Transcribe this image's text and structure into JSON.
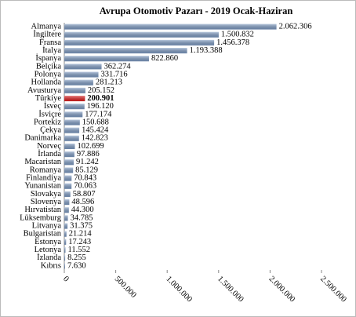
{
  "chart_data": {
    "type": "bar",
    "orientation": "horizontal",
    "title": "Avrupa Otomotiv Pazarı - 2019 Ocak-Haziran",
    "categories": [
      "Almanya",
      "İngiltere",
      "Fransa",
      "İtalya",
      "İspanya",
      "Belçika",
      "Polonya",
      "Hollanda",
      "Avusturya",
      "Türkiye",
      "İsveç",
      "İsviçre",
      "Portekiz",
      "Çekya",
      "Danimarka",
      "Norveç",
      "İrlanda",
      "Macaristan",
      "Romanya",
      "Finlandiya",
      "Yunanistan",
      "Slovakya",
      "Slovenya",
      "Hırvatistan",
      "Lüksemburg",
      "Litvanya",
      "Bulgaristan",
      "Estonya",
      "Letonya",
      "İzlanda",
      "Kıbrıs"
    ],
    "values": [
      2062306,
      1500832,
      1456378,
      1193388,
      822860,
      362274,
      331716,
      281213,
      205152,
      200901,
      196120,
      177174,
      150688,
      145424,
      142823,
      102699,
      97886,
      91242,
      85129,
      70843,
      70063,
      58807,
      48596,
      44300,
      34785,
      31375,
      21214,
      17243,
      11552,
      8255,
      7630
    ],
    "value_labels": [
      "2.062.306",
      "1.500.832",
      "1.456.378",
      "1.193.388",
      "822.860",
      "362.274",
      "331.716",
      "281.213",
      "205.152",
      "200.901",
      "196.120",
      "177.174",
      "150.688",
      "145.424",
      "142.823",
      "102.699",
      "97.886",
      "91.242",
      "85.129",
      "70.843",
      "70.063",
      "58.807",
      "48.596",
      "44.300",
      "34.785",
      "31.375",
      "21.214",
      "17.243",
      "11.552",
      "8.255",
      "7.630"
    ],
    "colors": [
      "#7f9cc4",
      "#7f9cc4",
      "#7f9cc4",
      "#7f9cc4",
      "#7f9cc4",
      "#7f9cc4",
      "#7f9cc4",
      "#7f9cc4",
      "#7f9cc4",
      "#e02020",
      "#7f9cc4",
      "#7f9cc4",
      "#7f9cc4",
      "#7f9cc4",
      "#7f9cc4",
      "#7f9cc4",
      "#7f9cc4",
      "#7f9cc4",
      "#7f9cc4",
      "#7f9cc4",
      "#7f9cc4",
      "#7f9cc4",
      "#7f9cc4",
      "#7f9cc4",
      "#7f9cc4",
      "#7f9cc4",
      "#7f9cc4",
      "#7f9cc4",
      "#7f9cc4",
      "#7f9cc4",
      "#7f9cc4"
    ],
    "xlim": [
      0,
      2500000
    ],
    "xticks": [
      0,
      {
        "value": 500000,
        "label": "500.000"
      },
      {
        "value": 1000000,
        "label": "1.000.000"
      },
      {
        "value": 1500000,
        "label": "1.500.000"
      },
      {
        "value": 2000000,
        "label": "2.000.000"
      },
      {
        "value": 2500000,
        "label": "2.500.000"
      }
    ],
    "grid": false
  }
}
